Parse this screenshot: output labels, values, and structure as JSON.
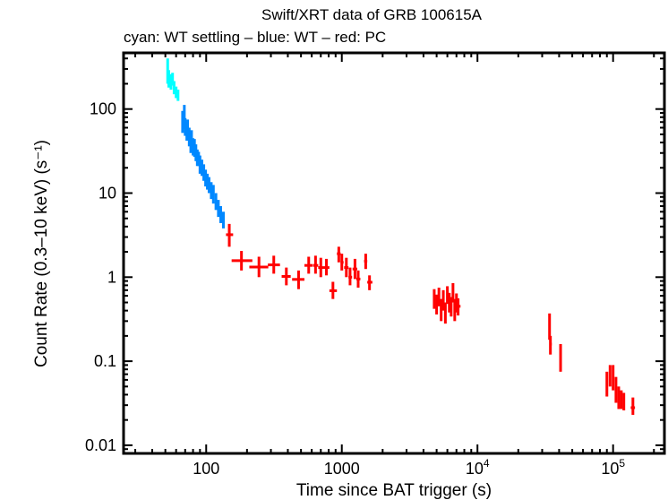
{
  "chart_data": {
    "type": "scatter",
    "title": "Swift/XRT data of GRB 100615A",
    "subtitle": "cyan: WT settling – blue: WT – red: PC",
    "xlabel": "Time since BAT trigger (s)",
    "ylabel": "Count Rate (0.3–10 keV) (s⁻¹)",
    "xscale": "log",
    "yscale": "log",
    "xlim": [
      24.6,
      239000
    ],
    "ylim": [
      0.008,
      466
    ],
    "grid": false,
    "x_ticks": [
      {
        "value": 100,
        "label": "100"
      },
      {
        "value": 1000,
        "label": "1000"
      },
      {
        "value": 10000,
        "label": "10",
        "exp": "4"
      },
      {
        "value": 100000,
        "label": "10",
        "exp": "5"
      }
    ],
    "y_ticks": [
      {
        "value": 0.01,
        "label": "0.01"
      },
      {
        "value": 0.1,
        "label": "0.1"
      },
      {
        "value": 1,
        "label": "1"
      },
      {
        "value": 10,
        "label": "10"
      },
      {
        "value": 100,
        "label": "100"
      }
    ],
    "point_columns": [
      "x",
      "y",
      "y_low",
      "y_high",
      "x_low",
      "x_high"
    ],
    "series": [
      {
        "name": "WT settling",
        "color": "#00ffff",
        "points": [
          [
            52,
            280,
            200,
            400,
            51.3,
            52.7
          ],
          [
            53,
            230,
            180,
            290,
            52.3,
            53.7
          ],
          [
            55,
            210,
            170,
            260,
            54.3,
            55.7
          ],
          [
            56.5,
            230,
            190,
            270,
            55.8,
            57.2
          ],
          [
            58,
            180,
            150,
            215,
            57.3,
            58.7
          ],
          [
            60,
            160,
            135,
            185,
            59.2,
            60.8
          ],
          [
            62,
            145,
            125,
            170,
            61.2,
            62.8
          ]
        ]
      },
      {
        "name": "WT",
        "color": "#0088ff",
        "points": [
          [
            67,
            72,
            52,
            95,
            66,
            68
          ],
          [
            69,
            78,
            58,
            112,
            68,
            70
          ],
          [
            70,
            62,
            48,
            78,
            69,
            71
          ],
          [
            72,
            55,
            42,
            70,
            71,
            73
          ],
          [
            73,
            60,
            47,
            75,
            72,
            74
          ],
          [
            75,
            48,
            36,
            60,
            74,
            76
          ],
          [
            77,
            42,
            30,
            52,
            76,
            78
          ],
          [
            78,
            45,
            35,
            56,
            77,
            79
          ],
          [
            80,
            36,
            28,
            45,
            79,
            81
          ],
          [
            82,
            35,
            27,
            44,
            81,
            83
          ],
          [
            84,
            30,
            24,
            38,
            83,
            85
          ],
          [
            86,
            27,
            21,
            33,
            85,
            87
          ],
          [
            88,
            26,
            21,
            31,
            87,
            89
          ],
          [
            90,
            22,
            17,
            28,
            89,
            91
          ],
          [
            93,
            20,
            16,
            25,
            92,
            94
          ],
          [
            96,
            18,
            14,
            22,
            95,
            97
          ],
          [
            99,
            15,
            12,
            19,
            98,
            100
          ],
          [
            102,
            13.5,
            11,
            17,
            101,
            103
          ],
          [
            105,
            12.5,
            10,
            15.5,
            104,
            106
          ],
          [
            109,
            11,
            8.5,
            13.5,
            108,
            110
          ],
          [
            113,
            9.5,
            7.5,
            12.5,
            112,
            114
          ],
          [
            118,
            8.0,
            6.3,
            10,
            117,
            119
          ],
          [
            123,
            6.6,
            5.2,
            8.3,
            122,
            124
          ],
          [
            128,
            5.6,
            4.4,
            7.0,
            127,
            129
          ],
          [
            134,
            4.8,
            3.8,
            6.0,
            132,
            136
          ]
        ]
      },
      {
        "name": "PC",
        "color": "#ff0000",
        "points": [
          [
            148,
            3.2,
            2.3,
            4.3,
            140,
            158
          ],
          [
            182,
            1.57,
            1.2,
            2.05,
            154,
            219
          ],
          [
            245,
            1.32,
            1.0,
            1.75,
            208,
            287
          ],
          [
            315,
            1.4,
            1.1,
            1.8,
            285,
            350
          ],
          [
            390,
            1.02,
            0.8,
            1.3,
            360,
            420
          ],
          [
            480,
            0.94,
            0.72,
            1.2,
            430,
            530
          ],
          [
            570,
            1.38,
            1.1,
            1.75,
            530,
            610
          ],
          [
            640,
            1.38,
            1.1,
            1.8,
            615,
            670
          ],
          [
            700,
            1.3,
            1.0,
            1.7,
            670,
            735
          ],
          [
            770,
            1.3,
            1.05,
            1.65,
            735,
            810
          ],
          [
            860,
            0.69,
            0.55,
            0.88,
            810,
            920
          ],
          [
            950,
            1.9,
            1.5,
            2.3,
            920,
            980
          ],
          [
            1000,
            1.5,
            1.2,
            1.9,
            980,
            1030
          ],
          [
            1080,
            1.3,
            1.0,
            1.7,
            1040,
            1120
          ],
          [
            1150,
            1.0,
            0.8,
            1.3,
            1120,
            1190
          ],
          [
            1250,
            1.25,
            0.95,
            1.65,
            1200,
            1300
          ],
          [
            1320,
            0.95,
            0.75,
            1.2,
            1280,
            1370
          ],
          [
            1500,
            1.55,
            1.25,
            1.9,
            1460,
            1540
          ],
          [
            1600,
            0.87,
            0.7,
            1.05,
            1540,
            1680
          ],
          [
            4800,
            0.55,
            0.42,
            0.72,
            4700,
            4900
          ],
          [
            5000,
            0.48,
            0.36,
            0.62,
            4900,
            5100
          ],
          [
            5200,
            0.6,
            0.45,
            0.75,
            5100,
            5300
          ],
          [
            5400,
            0.42,
            0.3,
            0.55,
            5300,
            5500
          ],
          [
            5600,
            0.55,
            0.4,
            0.7,
            5500,
            5700
          ],
          [
            5800,
            0.38,
            0.28,
            0.5,
            5700,
            5900
          ],
          [
            6000,
            0.62,
            0.48,
            0.78,
            5900,
            6100
          ],
          [
            6200,
            0.5,
            0.38,
            0.65,
            6100,
            6300
          ],
          [
            6400,
            0.45,
            0.34,
            0.58,
            6300,
            6500
          ],
          [
            6600,
            0.65,
            0.5,
            0.85,
            6500,
            6700
          ],
          [
            6800,
            0.42,
            0.3,
            0.55,
            6700,
            6900
          ],
          [
            7000,
            0.5,
            0.38,
            0.64,
            6900,
            7100
          ],
          [
            7200,
            0.45,
            0.35,
            0.56,
            7100,
            7500
          ],
          [
            34000,
            0.25,
            0.18,
            0.37,
            33700,
            34300
          ],
          [
            34500,
            0.16,
            0.12,
            0.2,
            34200,
            35300
          ],
          [
            41000,
            0.11,
            0.075,
            0.16,
            40700,
            41300
          ],
          [
            90000,
            0.055,
            0.038,
            0.075,
            89000,
            91000
          ],
          [
            95000,
            0.07,
            0.05,
            0.09,
            94000,
            96000
          ],
          [
            100000,
            0.06,
            0.045,
            0.09,
            99000,
            101000
          ],
          [
            105000,
            0.045,
            0.032,
            0.065,
            104000,
            106000
          ],
          [
            110000,
            0.035,
            0.027,
            0.05,
            109000,
            111000
          ],
          [
            115000,
            0.035,
            0.027,
            0.045,
            114000,
            116000
          ],
          [
            120000,
            0.032,
            0.026,
            0.042,
            119000,
            121000
          ],
          [
            140000,
            0.028,
            0.023,
            0.037,
            135000,
            145000
          ]
        ]
      }
    ]
  }
}
